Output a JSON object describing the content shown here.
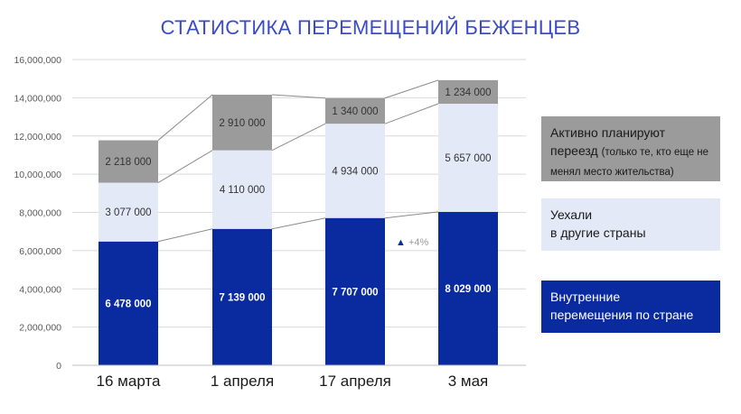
{
  "title": "СТАТИСТИКА ПЕРЕМЕЩЕНИЙ БЕЖЕНЦЕВ",
  "colors": {
    "internal": "#0a2aa0",
    "abroad": "#e3e9f6",
    "planning": "#9b9b9b",
    "title": "#3a4bc4"
  },
  "legend": {
    "planning_main": "Активно планируют переезд",
    "planning_note": "(только те, кто еще не менял место жительства)",
    "abroad_line1": "Уехали",
    "abroad_line2": "в другие страны",
    "internal_line1": "Внутренние",
    "internal_line2": "перемещения по стране"
  },
  "chart_data": {
    "type": "bar",
    "stacked": true,
    "categories": [
      "16 марта",
      "1 апреля",
      "17 апреля",
      "3 мая"
    ],
    "series": [
      {
        "name": "Внутренние перемещения по стране",
        "values": [
          6478000,
          7139000,
          7707000,
          8029000
        ],
        "labels": [
          "6 478 000",
          "7 139 000",
          "7 707 000",
          "8 029 000"
        ]
      },
      {
        "name": "Уехали в другие страны",
        "values": [
          3077000,
          4110000,
          4934000,
          5657000
        ],
        "labels": [
          "3 077 000",
          "4 110 000",
          "4 934 000",
          "5 657 000"
        ]
      },
      {
        "name": "Активно планируют переезд (только те, кто еще не менял место жительства)",
        "values": [
          2218000,
          2910000,
          1340000,
          1234000
        ],
        "labels": [
          "2 218 000",
          "2 910 000",
          "1 340 000",
          "1 234 000"
        ]
      }
    ],
    "yticks": [
      "0",
      "2,000,000",
      "4,000,000",
      "6,000,000",
      "8,000,000",
      "10,000,000",
      "12,000,000",
      "14,000,000",
      "16,000,000"
    ],
    "ylim": [
      0,
      16000000
    ],
    "annotation": {
      "category": "17 апреля",
      "text": "▲ +4%"
    },
    "connector_lines": true,
    "grid": true
  }
}
